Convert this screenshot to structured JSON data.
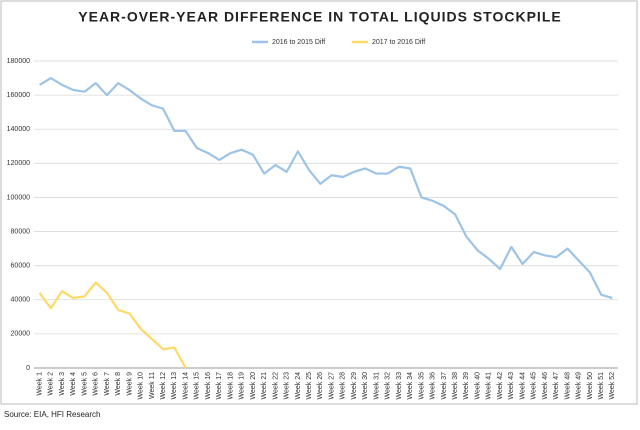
{
  "chart_data": {
    "type": "line",
    "title": "YEAR-OVER-YEAR DIFFERENCE IN TOTAL LIQUIDS STOCKPILE",
    "source": "Source: EIA, HFI Research",
    "categories": [
      "Week 1",
      "Week 2",
      "Week 3",
      "Week 4",
      "Week 5",
      "Week 6",
      "Week 7",
      "Week 8",
      "Week 9",
      "Week 10",
      "Week 11",
      "Week 12",
      "Week 13",
      "Week 14",
      "Week 15",
      "Week 16",
      "Week 17",
      "Week 18",
      "Week 19",
      "Week 20",
      "Week 21",
      "Week 22",
      "Week 23",
      "Week 24",
      "Week 25",
      "Week 26",
      "Week 27",
      "Week 28",
      "Week 29",
      "Week 30",
      "Week 31",
      "Week 32",
      "Week 33",
      "Week 34",
      "Week 35",
      "Week 36",
      "Week 37",
      "Week 38",
      "Week 39",
      "Week 40",
      "Week 41",
      "Week 42",
      "Week 43",
      "Week 44",
      "Week 45",
      "Week 46",
      "Week 47",
      "Week 48",
      "Week 49",
      "Week 50",
      "Week 51",
      "Week 52"
    ],
    "series": [
      {
        "name": "2016 to 2015 Diff",
        "color": "#9dc3e6",
        "values": [
          166000,
          170000,
          166000,
          163000,
          162000,
          167000,
          160000,
          167000,
          163000,
          158000,
          154000,
          152000,
          139000,
          139000,
          129000,
          126000,
          122000,
          126000,
          128000,
          125000,
          114000,
          119000,
          115000,
          127000,
          116000,
          108000,
          113000,
          112000,
          115000,
          117000,
          114000,
          114000,
          118000,
          117000,
          100000,
          98000,
          95000,
          90000,
          77000,
          69000,
          64000,
          58000,
          71000,
          61000,
          68000,
          66000,
          65000,
          70000,
          63000,
          56000,
          43000,
          41000
        ]
      },
      {
        "name": "2017 to 2016 Diff",
        "color": "#ffd966",
        "values": [
          44000,
          35000,
          45000,
          41000,
          42000,
          50000,
          44000,
          34000,
          32000,
          23000,
          17000,
          11000,
          12000,
          0,
          null,
          null,
          null,
          null,
          null,
          null,
          null,
          null,
          null,
          null,
          null,
          null,
          null,
          null,
          null,
          null,
          null,
          null,
          null,
          null,
          null,
          null,
          null,
          null,
          null,
          null,
          null,
          null,
          null,
          null,
          null,
          null,
          null,
          null,
          null,
          null,
          null,
          null
        ]
      }
    ],
    "ylim": [
      0,
      180000
    ],
    "yticks": [
      0,
      20000,
      40000,
      60000,
      80000,
      100000,
      120000,
      140000,
      160000,
      180000
    ],
    "grid": true,
    "legend": "top"
  }
}
